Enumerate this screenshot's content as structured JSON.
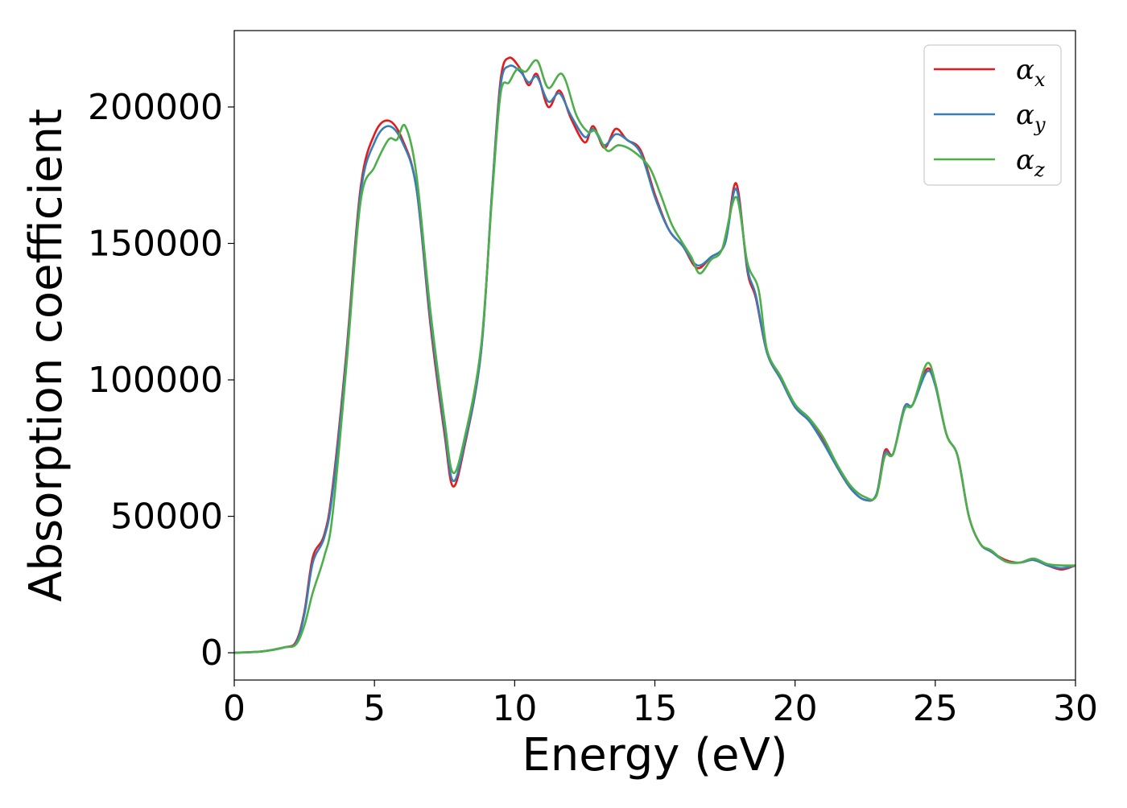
{
  "chart_data": {
    "type": "line",
    "title": "",
    "xlabel": "Energy (eV)",
    "ylabel": "Absorption coefficient",
    "xlim": [
      0,
      30
    ],
    "ylim": [
      -10000,
      228000
    ],
    "xticks": [
      0,
      5,
      10,
      15,
      20,
      25,
      30
    ],
    "yticks": [
      0,
      50000,
      100000,
      150000,
      200000
    ],
    "grid": false,
    "legend_position": "top-right",
    "series": [
      {
        "name": "α",
        "subscript": "x",
        "color": "#e41a1c",
        "points": [
          [
            0,
            0
          ],
          [
            1,
            500
          ],
          [
            1.8,
            2000
          ],
          [
            2.2,
            4000
          ],
          [
            2.5,
            15000
          ],
          [
            2.8,
            35000
          ],
          [
            3.2,
            43000
          ],
          [
            3.5,
            60000
          ],
          [
            4,
            110000
          ],
          [
            4.5,
            170000
          ],
          [
            5,
            190000
          ],
          [
            5.5,
            195000
          ],
          [
            6,
            188000
          ],
          [
            6.5,
            170000
          ],
          [
            7,
            120000
          ],
          [
            7.5,
            80000
          ],
          [
            7.8,
            61000
          ],
          [
            8.2,
            75000
          ],
          [
            8.8,
            110000
          ],
          [
            9.2,
            170000
          ],
          [
            9.5,
            210000
          ],
          [
            9.8,
            218000
          ],
          [
            10.2,
            214000
          ],
          [
            10.5,
            208000
          ],
          [
            10.8,
            212000
          ],
          [
            11.2,
            200000
          ],
          [
            11.6,
            206000
          ],
          [
            12,
            196000
          ],
          [
            12.5,
            187000
          ],
          [
            12.8,
            193000
          ],
          [
            13.2,
            185000
          ],
          [
            13.6,
            192000
          ],
          [
            14,
            188000
          ],
          [
            14.5,
            184000
          ],
          [
            15,
            168000
          ],
          [
            15.5,
            155000
          ],
          [
            16,
            149000
          ],
          [
            16.5,
            141000
          ],
          [
            17,
            145000
          ],
          [
            17.5,
            150000
          ],
          [
            17.9,
            172000
          ],
          [
            18.3,
            140000
          ],
          [
            18.6,
            130000
          ],
          [
            19,
            110000
          ],
          [
            19.5,
            100000
          ],
          [
            20,
            90000
          ],
          [
            20.5,
            85000
          ],
          [
            21,
            78000
          ],
          [
            21.5,
            68000
          ],
          [
            22,
            60000
          ],
          [
            22.5,
            56000
          ],
          [
            22.9,
            58000
          ],
          [
            23.2,
            74000
          ],
          [
            23.5,
            73000
          ],
          [
            23.9,
            90000
          ],
          [
            24.2,
            91000
          ],
          [
            24.7,
            104000
          ],
          [
            25,
            98000
          ],
          [
            25.4,
            80000
          ],
          [
            25.8,
            72000
          ],
          [
            26.2,
            50000
          ],
          [
            26.6,
            40000
          ],
          [
            27,
            37000
          ],
          [
            27.5,
            34000
          ],
          [
            28,
            33000
          ],
          [
            28.5,
            34000
          ],
          [
            29,
            32000
          ],
          [
            29.5,
            30500
          ],
          [
            30,
            32000
          ]
        ]
      },
      {
        "name": "α",
        "subscript": "y",
        "color": "#377eb8",
        "points": [
          [
            0,
            0
          ],
          [
            1,
            500
          ],
          [
            1.8,
            2000
          ],
          [
            2.2,
            3500
          ],
          [
            2.5,
            14000
          ],
          [
            2.8,
            33000
          ],
          [
            3.2,
            42000
          ],
          [
            3.5,
            58000
          ],
          [
            4,
            108000
          ],
          [
            4.5,
            168000
          ],
          [
            5,
            187000
          ],
          [
            5.5,
            193000
          ],
          [
            6,
            187000
          ],
          [
            6.5,
            170000
          ],
          [
            7,
            122000
          ],
          [
            7.5,
            82000
          ],
          [
            7.8,
            63000
          ],
          [
            8.2,
            76000
          ],
          [
            8.8,
            110000
          ],
          [
            9.2,
            170000
          ],
          [
            9.5,
            208000
          ],
          [
            9.8,
            215000
          ],
          [
            10.2,
            213000
          ],
          [
            10.5,
            209000
          ],
          [
            10.8,
            211000
          ],
          [
            11.2,
            202000
          ],
          [
            11.6,
            205000
          ],
          [
            12,
            197000
          ],
          [
            12.5,
            189000
          ],
          [
            12.8,
            192000
          ],
          [
            13.2,
            186000
          ],
          [
            13.6,
            190000
          ],
          [
            14,
            188000
          ],
          [
            14.5,
            183000
          ],
          [
            15,
            167000
          ],
          [
            15.5,
            155000
          ],
          [
            16,
            149000
          ],
          [
            16.5,
            142000
          ],
          [
            17,
            145000
          ],
          [
            17.5,
            150000
          ],
          [
            17.9,
            170000
          ],
          [
            18.3,
            141000
          ],
          [
            18.6,
            131000
          ],
          [
            19,
            110000
          ],
          [
            19.5,
            100000
          ],
          [
            20,
            90000
          ],
          [
            20.5,
            85000
          ],
          [
            21,
            77000
          ],
          [
            21.5,
            68000
          ],
          [
            22,
            60000
          ],
          [
            22.5,
            56000
          ],
          [
            22.9,
            58000
          ],
          [
            23.2,
            73000
          ],
          [
            23.5,
            73000
          ],
          [
            23.9,
            90000
          ],
          [
            24.2,
            91000
          ],
          [
            24.7,
            103000
          ],
          [
            25,
            98000
          ],
          [
            25.4,
            80000
          ],
          [
            25.8,
            72000
          ],
          [
            26.2,
            50000
          ],
          [
            26.6,
            40000
          ],
          [
            27,
            37000
          ],
          [
            27.5,
            33500
          ],
          [
            28,
            33000
          ],
          [
            28.5,
            34000
          ],
          [
            29,
            32000
          ],
          [
            29.5,
            31000
          ],
          [
            30,
            32000
          ]
        ]
      },
      {
        "name": "α",
        "subscript": "z",
        "color": "#4daf4a",
        "points": [
          [
            0,
            0
          ],
          [
            1,
            500
          ],
          [
            1.8,
            2000
          ],
          [
            2.2,
            3000
          ],
          [
            2.5,
            10000
          ],
          [
            2.8,
            22000
          ],
          [
            3.2,
            35000
          ],
          [
            3.5,
            50000
          ],
          [
            4,
            105000
          ],
          [
            4.5,
            165000
          ],
          [
            5,
            178000
          ],
          [
            5.5,
            188000
          ],
          [
            5.8,
            188000
          ],
          [
            6.1,
            193000
          ],
          [
            6.5,
            175000
          ],
          [
            7,
            125000
          ],
          [
            7.5,
            85000
          ],
          [
            7.8,
            66000
          ],
          [
            8.2,
            78000
          ],
          [
            8.8,
            112000
          ],
          [
            9.2,
            168000
          ],
          [
            9.5,
            205000
          ],
          [
            9.8,
            209000
          ],
          [
            10.1,
            214000
          ],
          [
            10.4,
            213000
          ],
          [
            10.8,
            217000
          ],
          [
            11.2,
            207000
          ],
          [
            11.7,
            212000
          ],
          [
            12.2,
            197000
          ],
          [
            12.6,
            191000
          ],
          [
            12.9,
            191000
          ],
          [
            13.3,
            184000
          ],
          [
            13.7,
            186000
          ],
          [
            14.2,
            184000
          ],
          [
            14.8,
            178000
          ],
          [
            15.2,
            168000
          ],
          [
            15.6,
            157000
          ],
          [
            16,
            150000
          ],
          [
            16.3,
            145000
          ],
          [
            16.6,
            139000
          ],
          [
            17,
            144000
          ],
          [
            17.4,
            148000
          ],
          [
            17.9,
            167000
          ],
          [
            18.3,
            143000
          ],
          [
            18.7,
            133000
          ],
          [
            19,
            111000
          ],
          [
            19.5,
            101000
          ],
          [
            20,
            91000
          ],
          [
            20.5,
            86000
          ],
          [
            21,
            79000
          ],
          [
            21.5,
            69000
          ],
          [
            22,
            61000
          ],
          [
            22.5,
            57000
          ],
          [
            22.9,
            57500
          ],
          [
            23.2,
            72000
          ],
          [
            23.5,
            73000
          ],
          [
            23.9,
            89000
          ],
          [
            24.2,
            91000
          ],
          [
            24.7,
            106000
          ],
          [
            25,
            99000
          ],
          [
            25.4,
            80000
          ],
          [
            25.8,
            72000
          ],
          [
            26.2,
            50000
          ],
          [
            26.6,
            40000
          ],
          [
            27,
            37500
          ],
          [
            27.5,
            33500
          ],
          [
            28,
            33000
          ],
          [
            28.5,
            34500
          ],
          [
            29,
            32500
          ],
          [
            29.5,
            32000
          ],
          [
            30,
            32000
          ]
        ]
      }
    ]
  }
}
